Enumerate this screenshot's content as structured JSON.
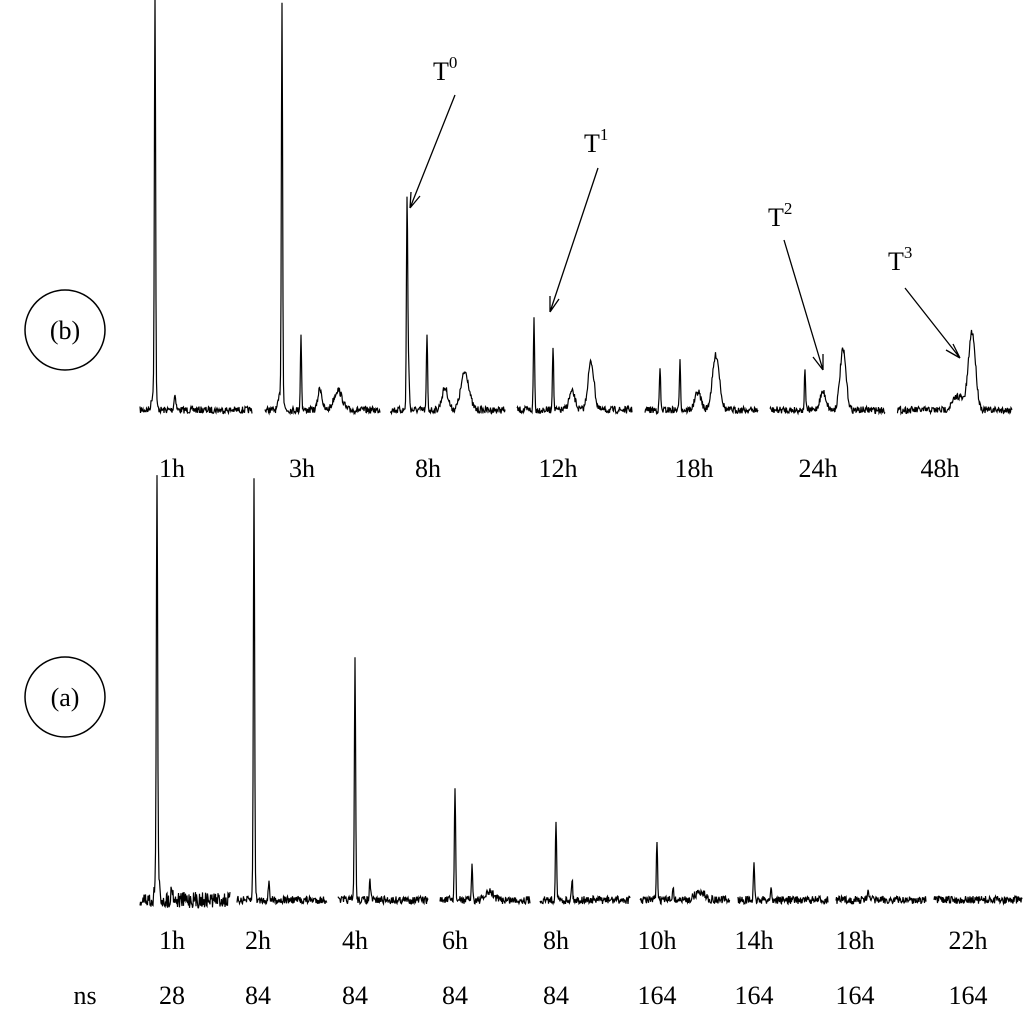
{
  "panels": [
    {
      "label": "(b)",
      "spectra": [
        "1h",
        "3h",
        "8h",
        "12h",
        "18h",
        "24h",
        "48h"
      ],
      "annotations": [
        {
          "base": "T",
          "sup": "0"
        },
        {
          "base": "T",
          "sup": "1"
        },
        {
          "base": "T",
          "sup": "2"
        },
        {
          "base": "T",
          "sup": "3"
        }
      ]
    },
    {
      "label": "(a)",
      "spectra": [
        "1h",
        "2h",
        "4h",
        "6h",
        "8h",
        "10h",
        "14h",
        "18h",
        "22h"
      ],
      "scans_label": "ns",
      "scans": [
        28,
        84,
        84,
        84,
        84,
        164,
        164,
        164,
        164
      ]
    }
  ]
}
